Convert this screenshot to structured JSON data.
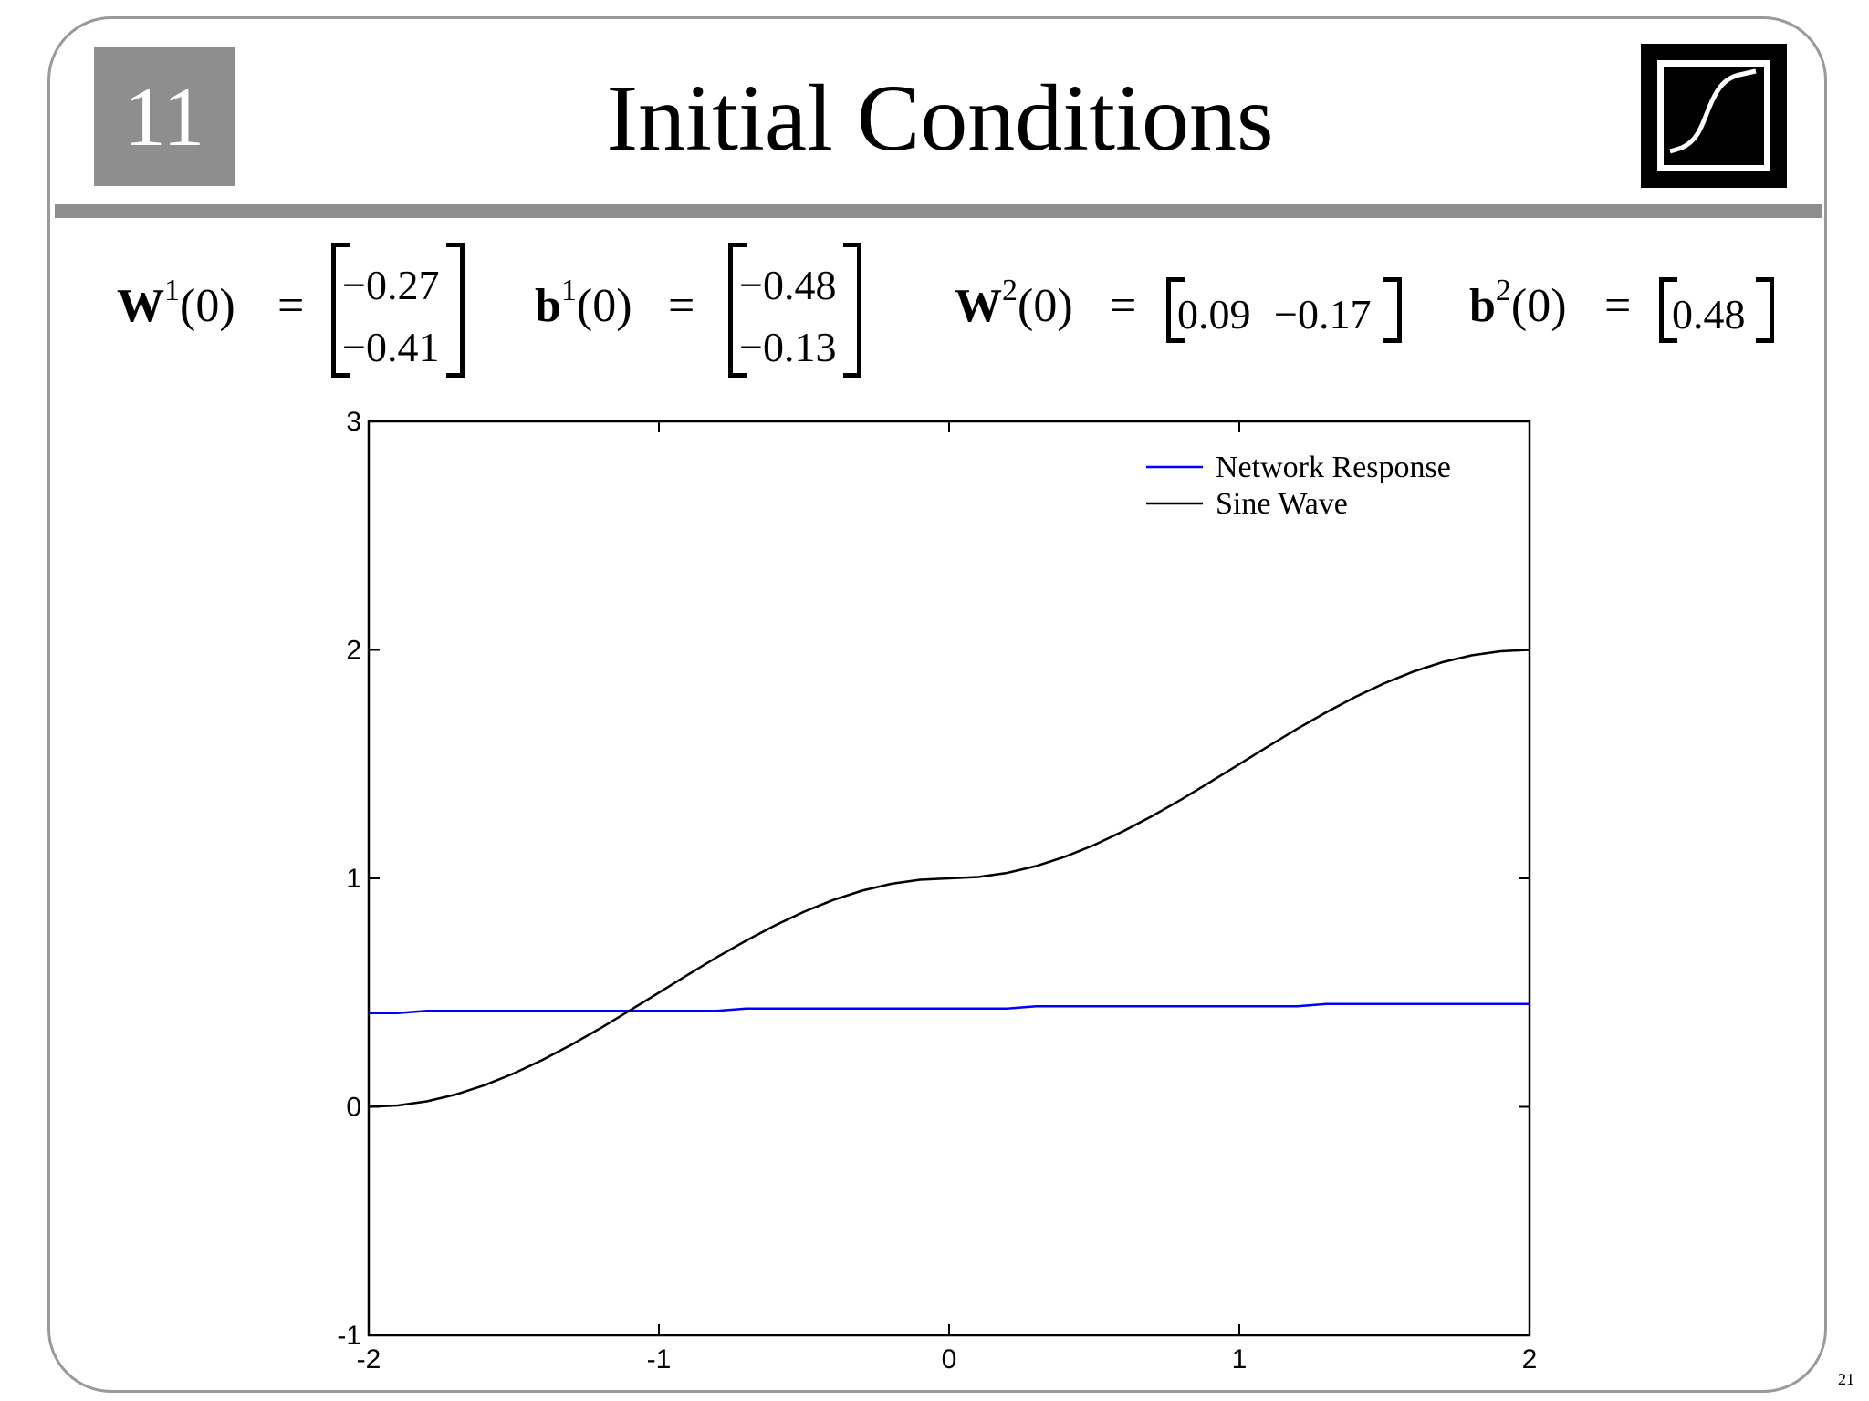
{
  "slide": {
    "chapter": "11",
    "title": "Initial Conditions",
    "logo_icon": "sigmoid-logo-icon",
    "page_number": "21"
  },
  "equations": {
    "w1": {
      "symbol": "W",
      "sup": "1",
      "arg": "(0)",
      "eq": "=",
      "values": [
        "−0.27",
        "−0.41"
      ]
    },
    "b1": {
      "symbol": "b",
      "sup": "1",
      "arg": "(0)",
      "eq": "=",
      "values": [
        "−0.48",
        "−0.13"
      ]
    },
    "w2": {
      "symbol": "W",
      "sup": "2",
      "arg": "(0)",
      "eq": "=",
      "values": [
        "0.09",
        "−0.17"
      ]
    },
    "b2": {
      "symbol": "b",
      "sup": "2",
      "arg": "(0)",
      "eq": "=",
      "values": [
        "0.48"
      ]
    }
  },
  "chart_data": {
    "type": "line",
    "xlim": [
      -2,
      2
    ],
    "ylim": [
      -1,
      3
    ],
    "xticks": [
      -2,
      -1,
      0,
      1,
      2
    ],
    "yticks": [
      -1,
      0,
      1,
      2,
      3
    ],
    "legend_position": "top-right",
    "grid": false,
    "series": [
      {
        "name": "Network Response",
        "color": "#0000ff",
        "x": [
          -2,
          -1.9,
          -1.8,
          -1.6,
          -1.2,
          -0.8,
          -0.7,
          -0.2,
          0.2,
          0.3,
          0.8,
          1.2,
          1.3,
          1.6,
          2.0
        ],
        "y": [
          0.41,
          0.41,
          0.42,
          0.42,
          0.42,
          0.42,
          0.43,
          0.43,
          0.43,
          0.44,
          0.44,
          0.44,
          0.45,
          0.45,
          0.45
        ]
      },
      {
        "name": "Sine Wave",
        "color": "#000000",
        "x": [
          -2,
          -1.9,
          -1.8,
          -1.7,
          -1.6,
          -1.5,
          -1.4,
          -1.3,
          -1.2,
          -1.1,
          -1.0,
          -0.9,
          -0.8,
          -0.7,
          -0.6,
          -0.5,
          -0.4,
          -0.3,
          -0.2,
          -0.1,
          0,
          0.1,
          0.2,
          0.3,
          0.4,
          0.5,
          0.6,
          0.7,
          0.8,
          0.9,
          1.0,
          1.1,
          1.2,
          1.3,
          1.4,
          1.5,
          1.6,
          1.7,
          1.8,
          1.9,
          2.0
        ],
        "y": [
          0.0,
          0.006,
          0.024,
          0.054,
          0.095,
          0.146,
          0.206,
          0.273,
          0.345,
          0.422,
          0.5,
          0.578,
          0.655,
          0.727,
          0.794,
          0.854,
          0.905,
          0.946,
          0.976,
          0.994,
          1.0,
          1.006,
          1.024,
          1.054,
          1.095,
          1.146,
          1.206,
          1.273,
          1.345,
          1.422,
          1.5,
          1.578,
          1.655,
          1.727,
          1.794,
          1.854,
          1.905,
          1.946,
          1.976,
          1.994,
          2.0
        ]
      }
    ]
  }
}
